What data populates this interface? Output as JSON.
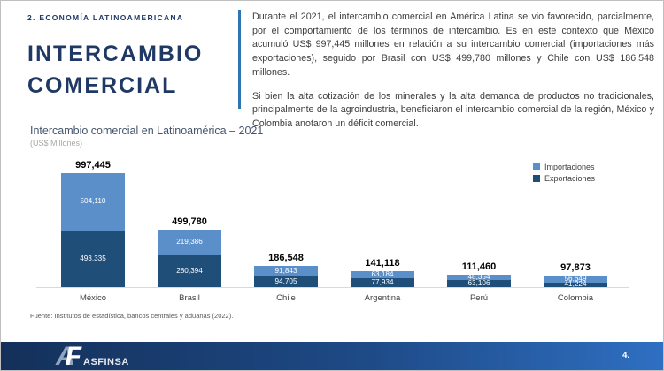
{
  "slide": {
    "section_label": "2. ECONOMÍA LATINOAMERICANA",
    "title_line1": "INTERCAMBIO",
    "title_line2": "COMERCIAL",
    "paragraph1": "Durante el 2021, el intercambio comercial en América Latina se vio favorecido, parcialmente, por el comportamiento de los términos de intercambio. Es en este contexto que México acumuló US$ 997,445 millones en relación a su intercambio comercial (importaciones más exportaciones), seguido por Brasil con US$ 499,780 millones y Chile con US$ 186,548 millones.",
    "paragraph2": "Si bien la alta cotización de los minerales y la alta demanda de productos no tradicionales, principalmente de la agroindustria, beneficiaron el intercambio comercial de la región, México y Colombia anotaron un déficit comercial.",
    "page_number": "4."
  },
  "chart": {
    "title": "Intercambio comercial en Latinoamérica – 2021",
    "subtitle": "(US$ Millones)",
    "source": "Fuente: Institutos de estadística, bancos centrales y aduanas (2022)."
  },
  "chart_data": {
    "type": "bar",
    "stacked": true,
    "title": "Intercambio comercial en Latinoamérica – 2021",
    "units": "US$ Millones",
    "categories": [
      "México",
      "Brasil",
      "Chile",
      "Argentina",
      "Perú",
      "Colombia"
    ],
    "series": [
      {
        "name": "Importaciones",
        "color": "#5B8FC9",
        "position_in_stack": "top",
        "values": [
          504110,
          219386,
          91843,
          63184,
          48354,
          56649
        ]
      },
      {
        "name": "Exportaciones",
        "color": "#1F4E79",
        "position_in_stack": "bottom",
        "values": [
          493335,
          280394,
          94705,
          77934,
          63106,
          41224
        ]
      }
    ],
    "totals": [
      997445,
      499780,
      186548,
      141118,
      111460,
      97873
    ],
    "data_labels": "inside-white, totals bold above bars",
    "legend_position": "top-right",
    "y_axis_visible": false,
    "gridlines": false,
    "ylim": [
      0,
      1050000
    ]
  },
  "footer": {
    "logo_a": "A",
    "logo_f": "F",
    "logo_text": "ASFINSA"
  }
}
